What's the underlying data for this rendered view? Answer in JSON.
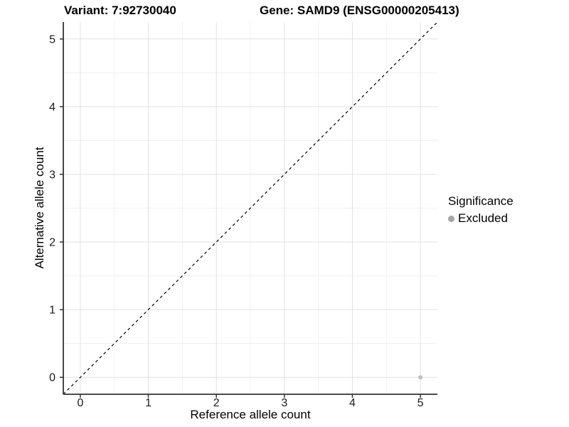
{
  "chart_data": {
    "type": "scatter",
    "title_left": "Variant: 7:92730040",
    "title_right": "Gene: SAMD9 (ENSG00000205413)",
    "xlabel": "Reference allele count",
    "ylabel": "Alternative allele count",
    "xlim": [
      -0.25,
      5.25
    ],
    "ylim": [
      -0.25,
      5.25
    ],
    "x_ticks": [
      0,
      1,
      2,
      3,
      4,
      5
    ],
    "y_ticks": [
      0,
      1,
      2,
      3,
      4,
      5
    ],
    "x_minor_ticks": [
      0.5,
      1.5,
      2.5,
      3.5,
      4.5
    ],
    "y_minor_ticks": [
      0.5,
      1.5,
      2.5,
      3.5,
      4.5
    ],
    "grid": "major+minor",
    "legend_position": "right",
    "reference_line": {
      "shape": "diagonal-y-equals-x",
      "style": "dashed",
      "color": "#000000",
      "from": [
        -0.25,
        -0.25
      ],
      "to": [
        5.25,
        5.25
      ]
    },
    "series": [
      {
        "name": "Excluded",
        "marker": "circle",
        "color": "#bebebe",
        "points": [
          {
            "x": 5,
            "y": 0
          }
        ]
      }
    ],
    "legend": {
      "title": "Significance",
      "items": [
        {
          "label": "Excluded",
          "color": "#a6a6a6",
          "marker": "circle"
        }
      ]
    },
    "colors": {
      "grid_major": "#e2e2e2",
      "grid_minor": "#f0f0f0",
      "axis_line": "#333333",
      "tick_mark": "#333333",
      "tick_label": "#1a1a1a",
      "background": "#ffffff"
    }
  }
}
